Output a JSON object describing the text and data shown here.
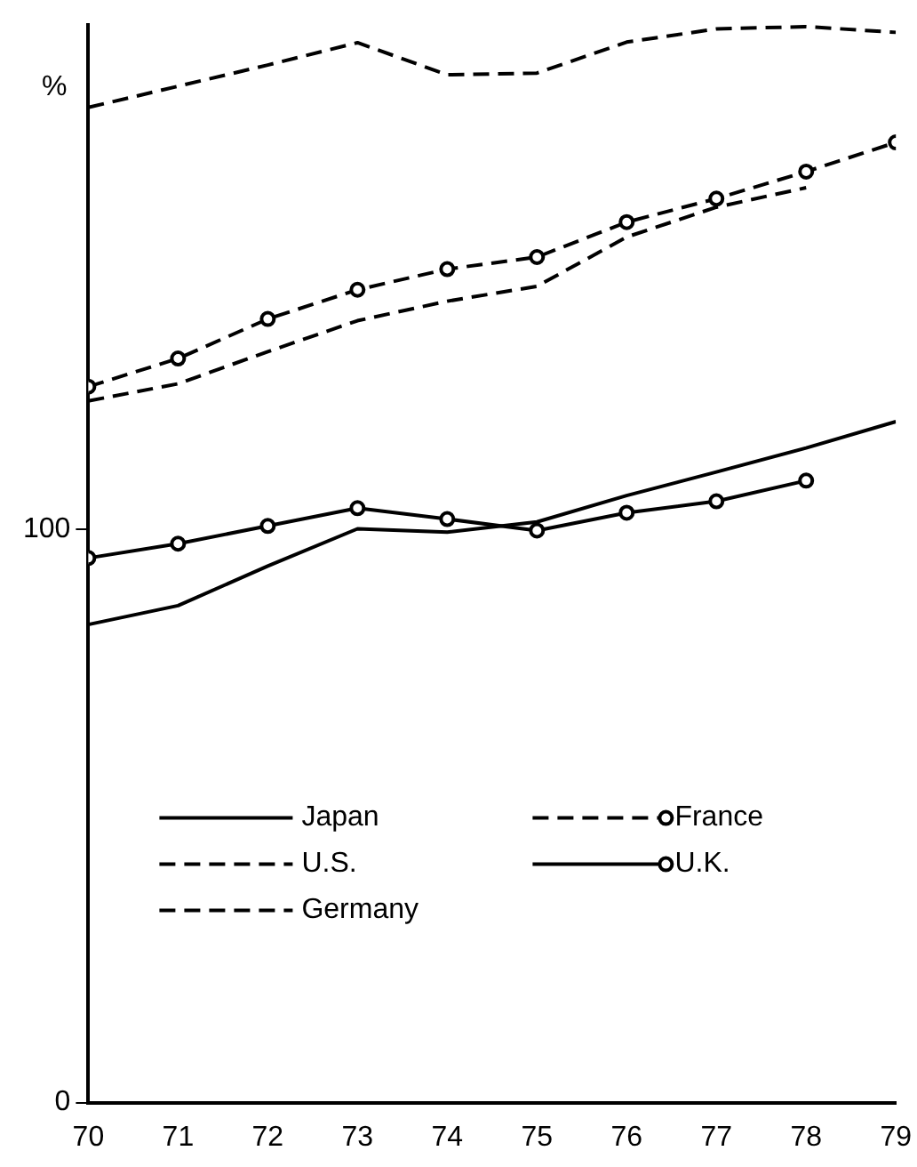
{
  "chart_data": {
    "type": "line",
    "ylabel": "%",
    "x": [
      70,
      71,
      72,
      73,
      74,
      75,
      76,
      77,
      78,
      79
    ],
    "xlim": [
      70,
      79
    ],
    "xticks": [
      70,
      71,
      72,
      73,
      74,
      75,
      76,
      77,
      78,
      79
    ],
    "ylim": [
      0,
      188
    ],
    "yticks": [
      0,
      100
    ],
    "grid": false,
    "legend": "bottom left",
    "series": [
      {
        "name": "Japan",
        "color": "#000000",
        "line_style": "solid",
        "marker": "none",
        "values": [
          83.4,
          86.7,
          93.6,
          100.1,
          99.5,
          101.3,
          105.9,
          110,
          114.2,
          118.8
        ]
      },
      {
        "name": "U.S.",
        "color": "#000000",
        "line_style": "dashed",
        "marker": "none",
        "values": [
          173.6,
          177.3,
          181,
          184.9,
          179.3,
          179.6,
          185,
          187.3,
          187.7,
          186.7
        ]
      },
      {
        "name": "Germany",
        "color": "#000000",
        "line_style": "dashed",
        "marker": "none",
        "values": [
          122.4,
          125.4,
          131,
          136.4,
          139.8,
          142.4,
          151,
          156.2,
          159.6,
          null
        ]
      },
      {
        "name": "France",
        "color": "#000000",
        "line_style": "dashed",
        "marker": "circle",
        "values": [
          124.9,
          129.8,
          136.7,
          141.8,
          145.4,
          147.5,
          153.6,
          157.7,
          162.4,
          167.5
        ]
      },
      {
        "name": "U.K.",
        "color": "#000000",
        "line_style": "solid",
        "marker": "circle",
        "values": [
          95,
          97.5,
          100.6,
          103.7,
          101.8,
          99.8,
          102.9,
          104.9,
          108.5,
          null
        ]
      }
    ]
  }
}
